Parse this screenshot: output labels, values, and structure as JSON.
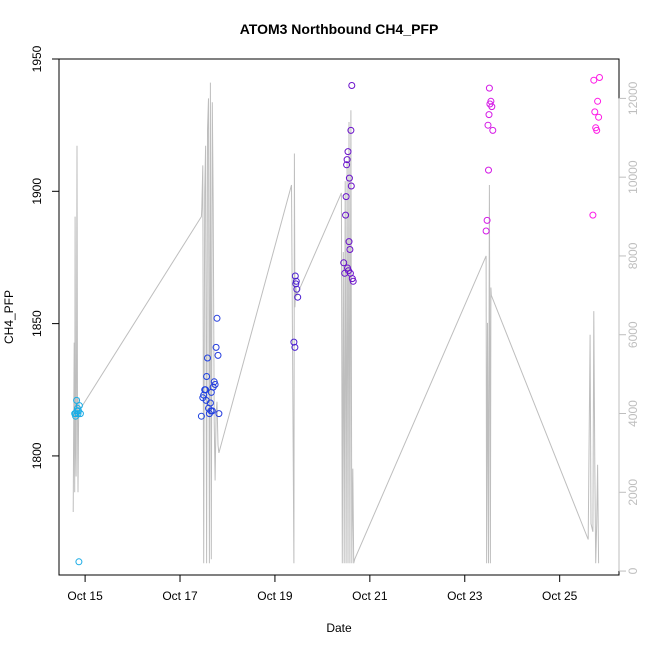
{
  "chart_data": {
    "type": "scatter",
    "title": "ATOM3 Northbound CH4_PFP",
    "xlabel": "Date",
    "ylabel": "CH4_PFP",
    "x_ticks": [
      "Oct 15",
      "Oct 17",
      "Oct 19",
      "Oct 21",
      "Oct 23",
      "Oct 25"
    ],
    "x_tick_days": [
      15,
      17,
      19,
      21,
      23,
      25
    ],
    "xlim": [
      14.45,
      26.25
    ],
    "ylim": [
      1755,
      1950
    ],
    "y_ticks": [
      1800,
      1850,
      1900,
      1950
    ],
    "y2lim": [
      -100,
      13000
    ],
    "y2_ticks": [
      0,
      2000,
      4000,
      6000,
      8000,
      10000,
      12000
    ],
    "point_series": {
      "x": [
        14.78,
        14.8,
        14.82,
        14.84,
        14.86,
        14.88,
        14.9,
        14.8,
        14.83,
        14.87,
        14.85,
        17.45,
        17.48,
        17.5,
        17.52,
        17.54,
        17.56,
        17.58,
        17.6,
        17.62,
        17.64,
        17.66,
        17.68,
        17.7,
        17.72,
        17.74,
        17.76,
        17.78,
        17.8,
        17.82,
        17.55,
        17.65,
        19.4,
        19.42,
        19.44,
        19.46,
        19.48,
        19.43,
        19.45,
        20.45,
        20.47,
        20.49,
        20.51,
        20.53,
        20.55,
        20.57,
        20.59,
        20.61,
        20.63,
        20.65,
        20.5,
        20.52,
        20.54,
        20.56,
        20.58,
        20.6,
        20.62,
        23.45,
        23.47,
        23.49,
        23.51,
        23.53,
        23.55,
        23.57,
        23.59,
        23.5,
        23.52,
        25.7,
        25.72,
        25.74,
        25.76,
        25.78,
        25.8,
        25.82,
        25.84
      ],
      "y": [
        1816,
        1815,
        1821,
        1818,
        1817,
        1819,
        1816,
        1816,
        1817,
        1760,
        1816,
        1815,
        1822,
        1823,
        1825,
        1825,
        1830,
        1837,
        1818,
        1816,
        1820,
        1824,
        1817,
        1826,
        1828,
        1827,
        1841,
        1852,
        1838,
        1816,
        1821,
        1817,
        1843,
        1841,
        1865,
        1863,
        1860,
        1868,
        1866,
        1873,
        1869,
        1891,
        1910,
        1871,
        1870,
        1905,
        1869,
        1902,
        1867,
        1866,
        1898,
        1912,
        1915,
        1881,
        1878,
        1923,
        1940,
        1885,
        1889,
        1925,
        1929,
        1933,
        1934,
        1932,
        1923,
        1908,
        1939,
        1891,
        1942,
        1930,
        1924,
        1923,
        1934,
        1928,
        1943
      ]
    },
    "altitude_series": {
      "x": [
        14.75,
        14.76,
        14.77,
        14.78,
        14.79,
        14.8,
        14.81,
        14.82,
        14.83,
        14.84,
        14.85,
        14.86,
        14.87,
        14.88,
        14.89,
        17.45,
        17.46,
        17.48,
        17.5,
        17.52,
        17.54,
        17.56,
        17.58,
        17.6,
        17.62,
        17.64,
        17.66,
        17.68,
        17.7,
        17.72,
        17.74,
        17.76,
        17.78,
        17.8,
        17.82,
        19.35,
        19.4,
        19.41,
        19.42,
        19.44,
        19.46,
        20.4,
        20.42,
        20.44,
        20.46,
        20.48,
        20.5,
        20.52,
        20.54,
        20.56,
        20.58,
        20.6,
        20.62,
        20.64,
        20.66,
        20.68,
        23.45,
        23.46,
        23.48,
        23.5,
        23.52,
        23.54,
        23.55,
        23.56,
        25.6,
        25.64,
        25.66,
        25.7,
        25.72,
        25.74,
        25.76,
        25.78,
        25.8,
        25.82
      ],
      "y": [
        1500,
        3800,
        5800,
        2000,
        9000,
        3200,
        2400,
        6000,
        10800,
        4000,
        2000,
        3600,
        4400,
        3900,
        4100,
        9000,
        9200,
        10300,
        200,
        9600,
        10800,
        200,
        11200,
        12000,
        200,
        12400,
        300,
        11900,
        9300,
        3800,
        2300,
        4000,
        4300,
        3200,
        3000,
        9800,
        200,
        10600,
        6700,
        7200,
        7000,
        9600,
        200,
        8100,
        200,
        9900,
        200,
        10400,
        200,
        11400,
        200,
        11700,
        200,
        2600,
        200,
        300,
        8000,
        200,
        6300,
        200,
        9800,
        200,
        7200,
        7000,
        800,
        6000,
        1200,
        1000,
        6600,
        2700,
        200,
        1200,
        2700,
        200
      ]
    },
    "altitude_axis_label": "",
    "grid": false,
    "legend": "none",
    "colors": {
      "altitude_line": "#bebebe",
      "right_axis": "#bebebe",
      "point_gradient": [
        "#1ab0e6",
        "#1e40e0",
        "#6010c8",
        "#cc1ae6",
        "#ff1ae6"
      ]
    }
  }
}
